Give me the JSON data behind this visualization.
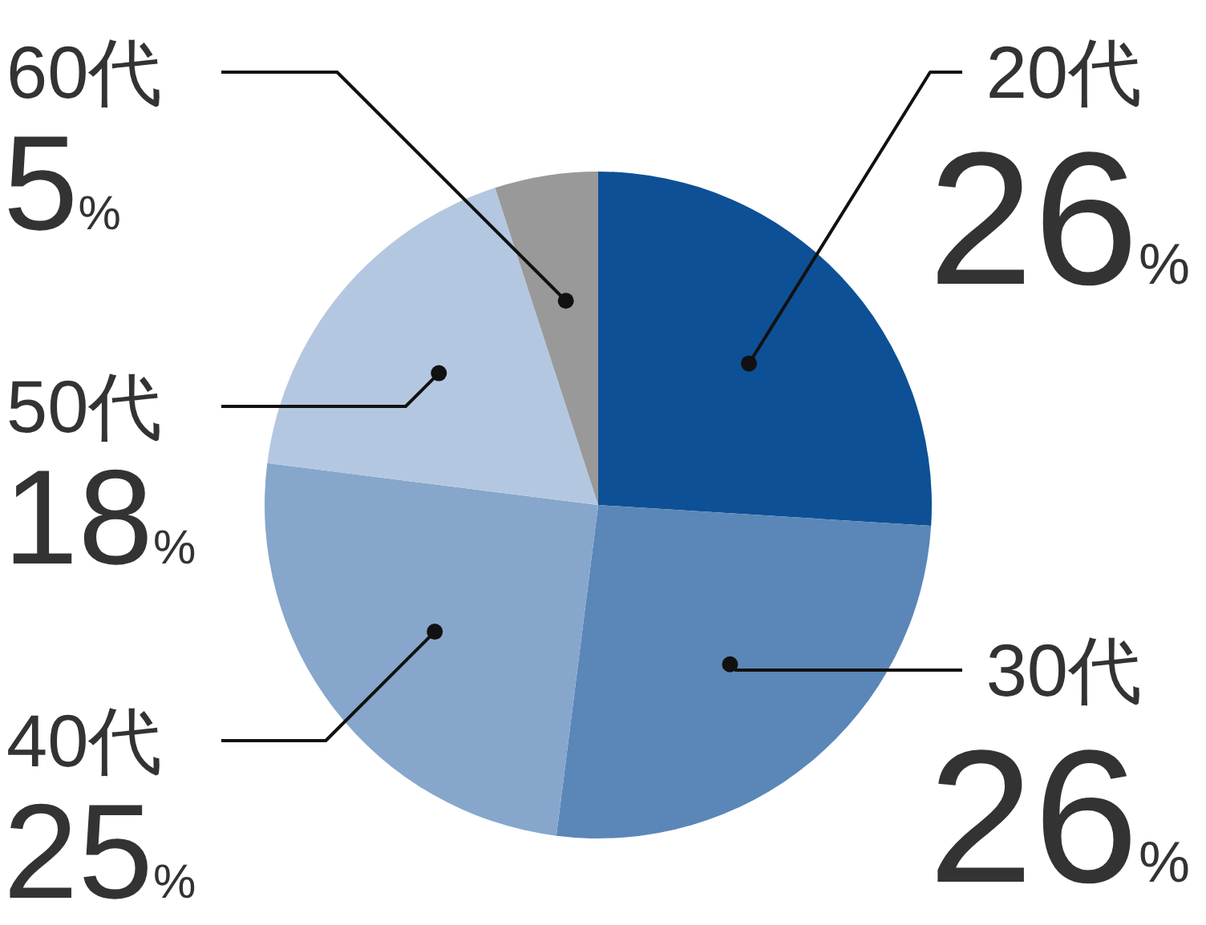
{
  "chart_data": {
    "type": "pie",
    "categories": [
      "20代",
      "30代",
      "40代",
      "50代",
      "60代"
    ],
    "values": [
      26,
      26,
      25,
      18,
      5
    ],
    "value_labels": [
      "26%",
      "26%",
      "25%",
      "18%",
      "5%"
    ],
    "colors": [
      "#0d5096",
      "#5a87b8",
      "#86a6cc",
      "#b3c8e0",
      "#999999"
    ]
  }
}
